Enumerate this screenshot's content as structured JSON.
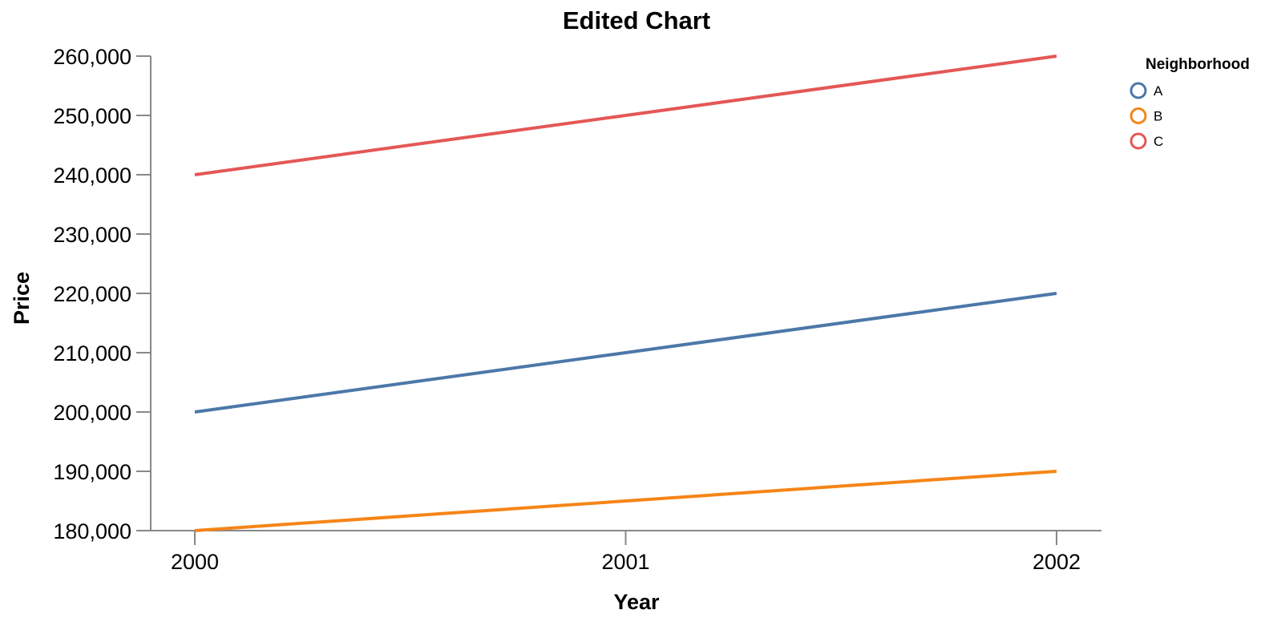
{
  "chart_data": {
    "type": "line",
    "title": "Edited Chart",
    "xlabel": "Year",
    "ylabel": "Price",
    "x": [
      2000,
      2001,
      2002
    ],
    "x_tick_labels": [
      "2000",
      "2001",
      "2002"
    ],
    "ylim": [
      180000,
      260000
    ],
    "y_ticks": [
      180000,
      190000,
      200000,
      210000,
      220000,
      230000,
      240000,
      250000,
      260000
    ],
    "y_tick_labels": [
      "180,000",
      "190,000",
      "200,000",
      "210,000",
      "220,000",
      "230,000",
      "240,000",
      "250,000",
      "260,000"
    ],
    "grid": false,
    "legend": {
      "title": "Neighborhood",
      "placement": "right"
    },
    "series": [
      {
        "name": "A",
        "color": "#4c78a8",
        "values": [
          200000,
          210000,
          220000
        ]
      },
      {
        "name": "B",
        "color": "#f58518",
        "values": [
          180000,
          185000,
          190000
        ]
      },
      {
        "name": "C",
        "color": "#e45756",
        "values": [
          240000,
          250000,
          260000
        ]
      }
    ]
  }
}
